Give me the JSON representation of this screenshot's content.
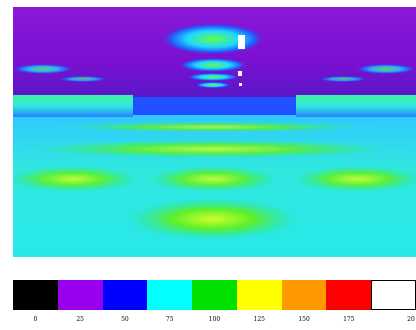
{
  "legend": {
    "colors": [
      "#000000",
      "#9900ee",
      "#0000ff",
      "#00ffff",
      "#00e000",
      "#ffff00",
      "#ff9900",
      "#ff0000",
      "#ffffff"
    ],
    "ticks": [
      "0",
      "25",
      "50",
      "75",
      "100",
      "125",
      "150",
      "175",
      "20"
    ]
  }
}
